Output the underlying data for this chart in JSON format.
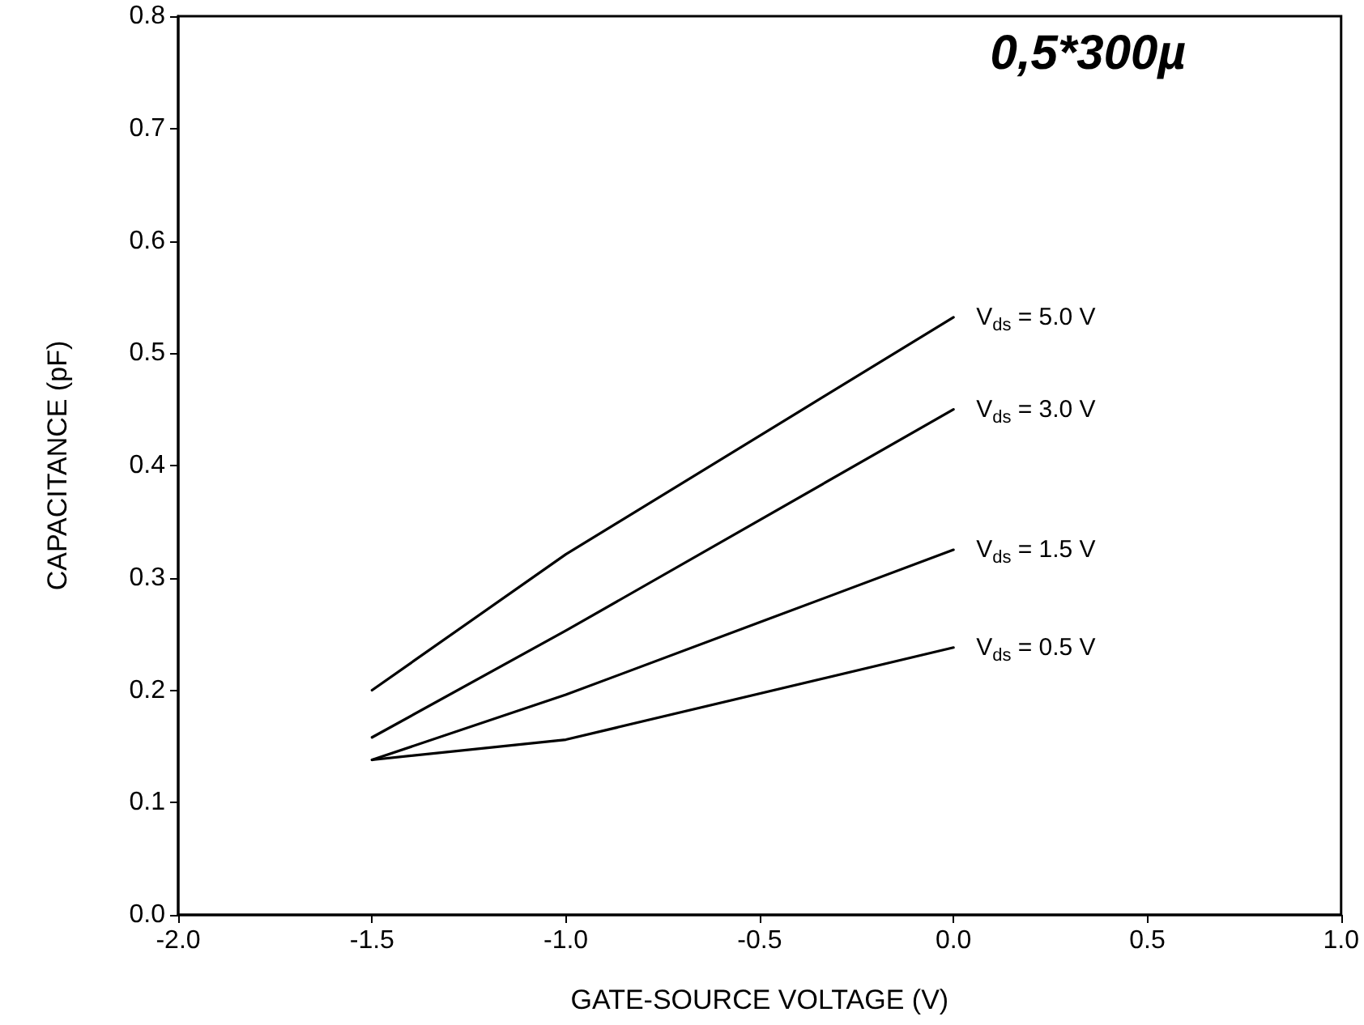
{
  "chart_data": {
    "type": "line",
    "xlabel": "GATE-SOURCE VOLTAGE (V)",
    "ylabel": "CAPACITANCE (pF)",
    "annotations": [
      "0,5*300µ"
    ],
    "x": [
      -1.5,
      -1.0,
      0.0
    ],
    "series": [
      {
        "name": "V$_{ds}$ = 5.0 V",
        "color": "#000000",
        "values": [
          0.2,
          0.321,
          0.532
        ]
      },
      {
        "name": "V$_{ds}$ = 3.0 V",
        "color": "#000000",
        "values": [
          0.158,
          0.253,
          0.45
        ]
      },
      {
        "name": "V$_{ds}$ = 1.5 V",
        "color": "#000000",
        "values": [
          0.138,
          0.196,
          0.325
        ]
      },
      {
        "name": "V$_{ds}$ = 0.5 V",
        "color": "#000000",
        "values": [
          0.138,
          0.156,
          0.238
        ]
      }
    ],
    "xlim": [
      -2.0,
      1.0
    ],
    "xticks": [
      {
        "value": -2.0,
        "label": "-2.0"
      },
      {
        "value": -1.5,
        "label": "-1.5"
      },
      {
        "value": -1.0,
        "label": "-1.0"
      },
      {
        "value": -0.5,
        "label": "-0.5"
      },
      {
        "value": 0.0,
        "label": "0.0"
      },
      {
        "value": 0.5,
        "label": "0.5"
      },
      {
        "value": 1.0,
        "label": "1.0"
      }
    ],
    "ylim": [
      0.0,
      0.8
    ],
    "yticks": [
      {
        "value": 0.0,
        "label": "0.0"
      },
      {
        "value": 0.1,
        "label": "0.1"
      },
      {
        "value": 0.2,
        "label": "0.2"
      },
      {
        "value": 0.3,
        "label": "0.3"
      },
      {
        "value": 0.4,
        "label": "0.4"
      },
      {
        "value": 0.5,
        "label": "0.5"
      },
      {
        "value": 0.6,
        "label": "0.6"
      },
      {
        "value": 0.7,
        "label": "0.7"
      },
      {
        "value": 0.8,
        "label": "0.8"
      }
    ],
    "grid": false,
    "legend": false,
    "marker": "none",
    "line_style": "solid"
  }
}
